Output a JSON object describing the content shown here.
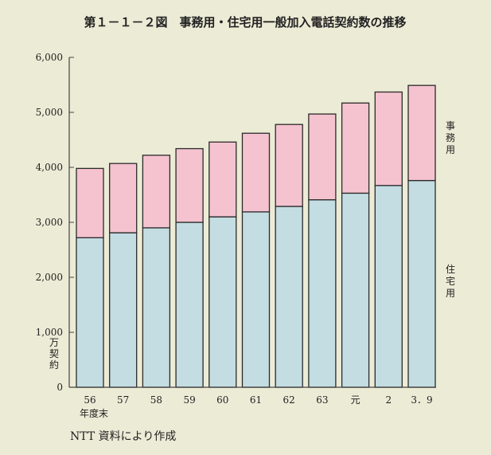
{
  "chart_data": {
    "type": "bar",
    "stacked": true,
    "title": "第１－１－２図　事務用・住宅用一般加入電話契約数の推移",
    "categories": [
      "56",
      "57",
      "58",
      "59",
      "60",
      "61",
      "62",
      "63",
      "元",
      "2",
      "3．9"
    ],
    "x_unit_label": "年度末",
    "y_unit_label": "万契約",
    "ylim": [
      0,
      6000
    ],
    "yticks": [
      "0",
      "1,000",
      "2,000",
      "3,000",
      "4,000",
      "5,000",
      "6,000"
    ],
    "series": [
      {
        "name": "住宅用",
        "color": "#c3dde2",
        "values": [
          2720,
          2810,
          2900,
          3000,
          3100,
          3190,
          3290,
          3410,
          3530,
          3670,
          3760
        ]
      },
      {
        "name": "事務用",
        "color": "#f4c3cf",
        "values": [
          1260,
          1260,
          1320,
          1340,
          1360,
          1430,
          1490,
          1560,
          1640,
          1700,
          1730
        ]
      }
    ],
    "source_note": "NTT 資料により作成",
    "grid": false
  }
}
